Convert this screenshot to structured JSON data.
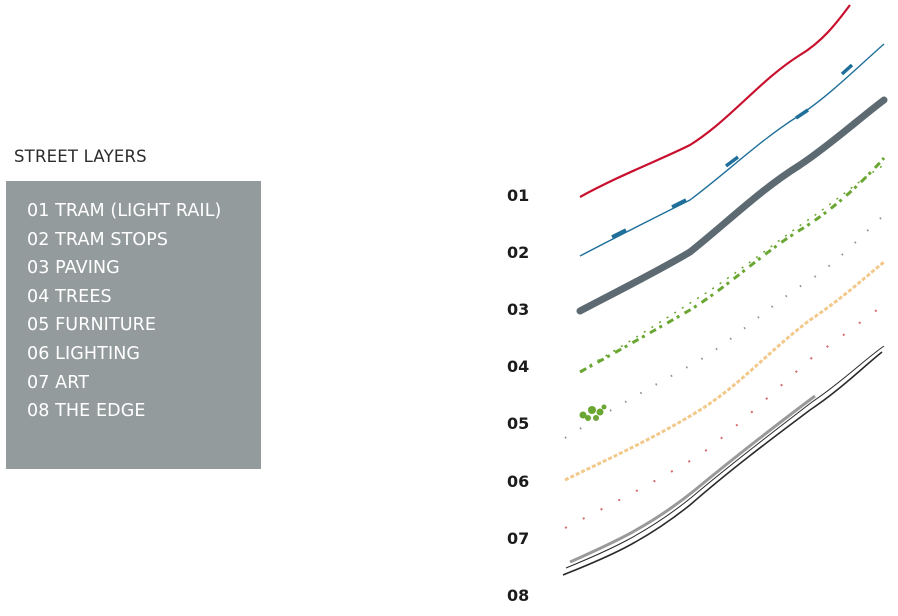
{
  "title": "STREET LAYERS",
  "legend": [
    "01 TRAM (LIGHT RAIL)",
    "02 TRAM STOPS",
    "03 PAVING",
    "04 TREES",
    "05 FURNITURE",
    "06 LIGHTING",
    "07 ART",
    "08 THE EDGE"
  ],
  "layer_numbers": [
    "01",
    "02",
    "03",
    "04",
    "05",
    "06",
    "07",
    "08"
  ],
  "colors": {
    "tram": "#c8102e",
    "tram_stops": "#1f6f9a",
    "paving": "#5d6a72",
    "trees": "#6aa632",
    "furniture": "#9a8f85",
    "lighting": "#f2c98a",
    "art": "#d46a6a",
    "edge": "#2a2a2a",
    "legend_box": "#949b9c"
  }
}
